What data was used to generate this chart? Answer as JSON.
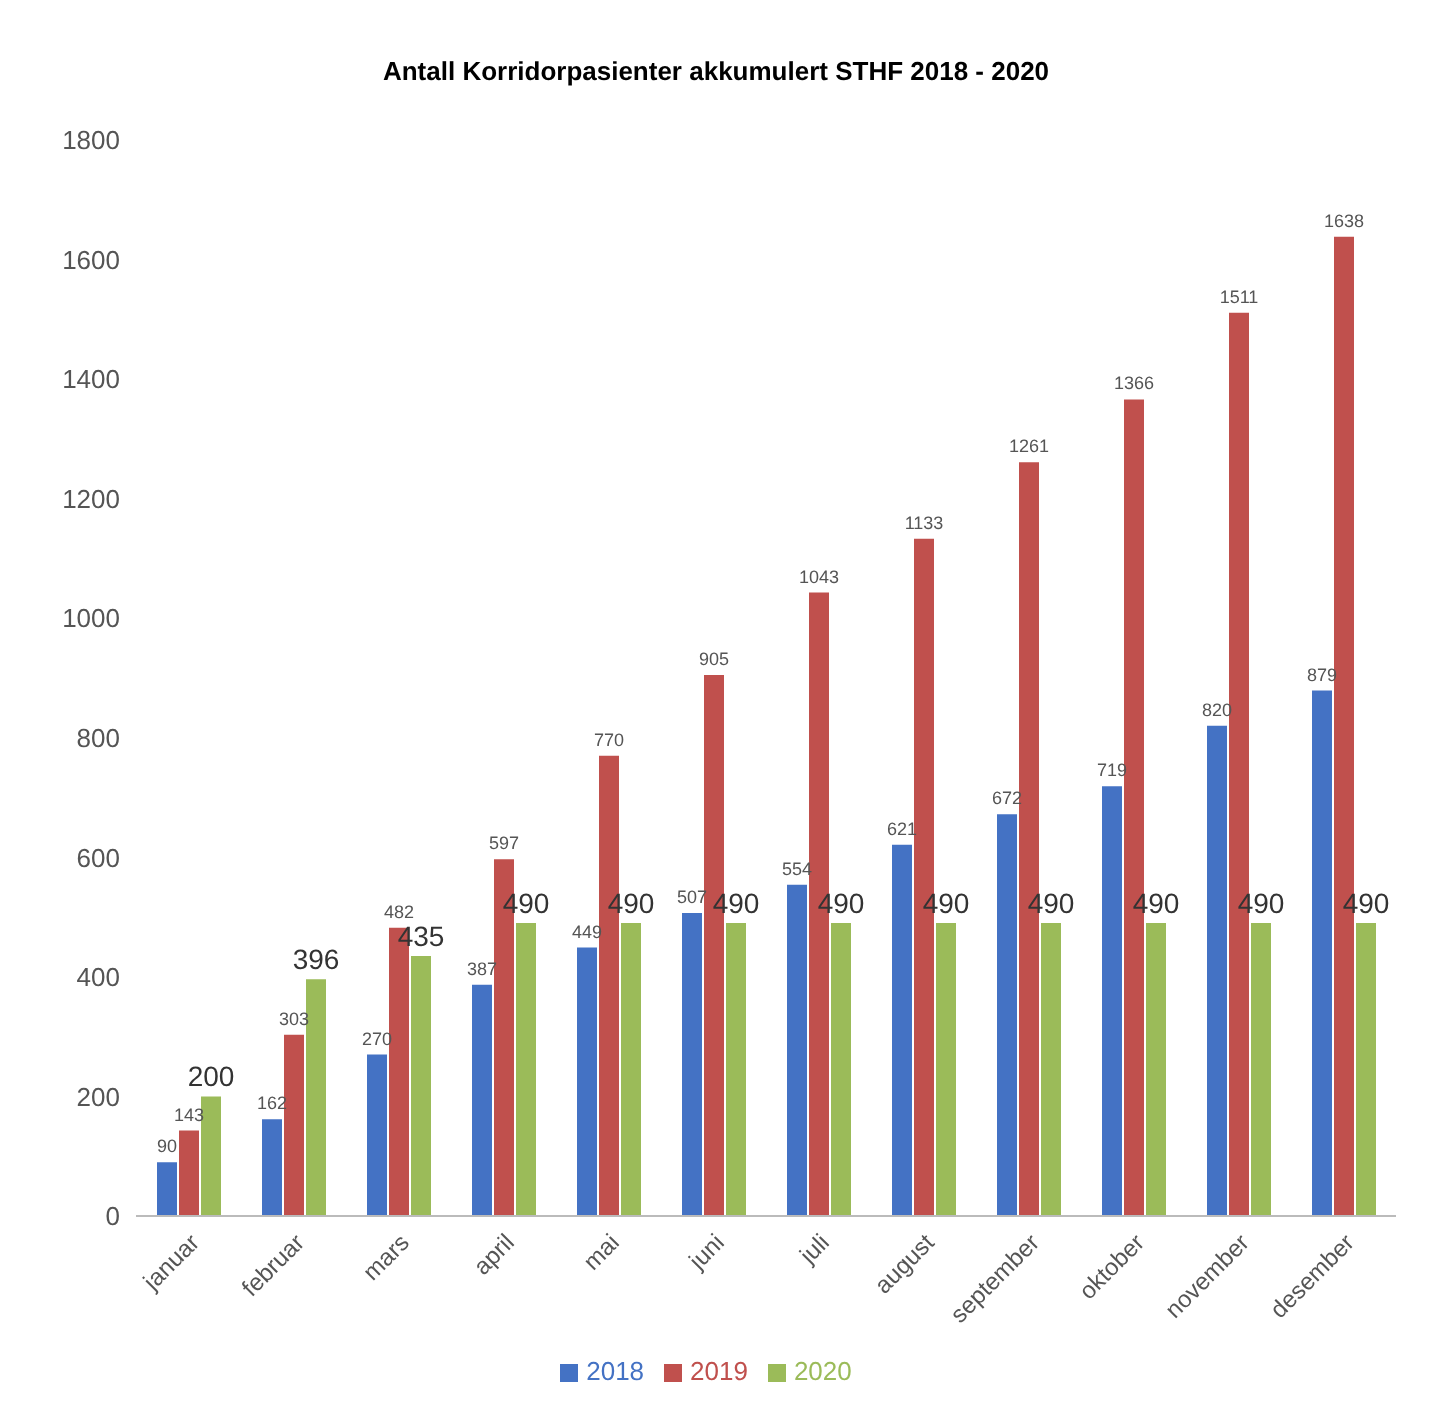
{
  "chart_data": {
    "type": "bar",
    "title": "Antall Korridorpasienter akkumulert STHF 2018 - 2020",
    "categories": [
      "januar",
      "februar",
      "mars",
      "april",
      "mai",
      "juni",
      "juli",
      "august",
      "september",
      "oktober",
      "november",
      "desember"
    ],
    "series": [
      {
        "name": "2018",
        "color": "#4472c4",
        "values": [
          90,
          162,
          270,
          387,
          449,
          507,
          554,
          621,
          672,
          719,
          820,
          879
        ]
      },
      {
        "name": "2019",
        "color": "#c0504d",
        "values": [
          143,
          303,
          482,
          597,
          770,
          905,
          1043,
          1133,
          1261,
          1366,
          1511,
          1638
        ]
      },
      {
        "name": "2020",
        "color": "#9bbb59",
        "values": [
          200,
          396,
          435,
          490,
          490,
          490,
          490,
          490,
          490,
          490,
          490,
          490
        ]
      }
    ],
    "ylim": [
      0,
      1800
    ],
    "yticks": [
      0,
      200,
      400,
      600,
      800,
      1000,
      1200,
      1400,
      1600,
      1800
    ],
    "data_labels": true,
    "grid": false,
    "legend": "bottom"
  }
}
